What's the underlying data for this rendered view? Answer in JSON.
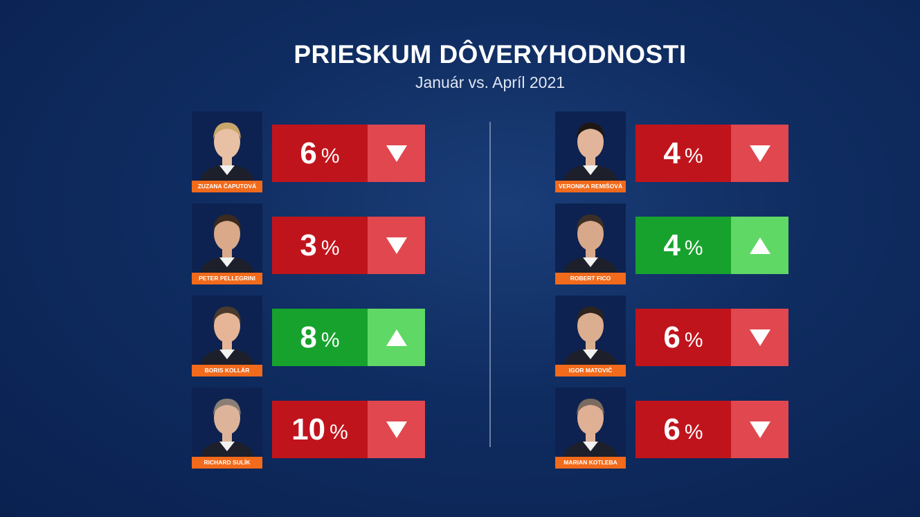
{
  "chart_data": {
    "type": "table",
    "title": "PRIESKUM DÔVERYHODNOSTI",
    "subtitle": "Január vs. Apríl 2021",
    "pct_symbol": "%",
    "colors": {
      "decrease_value": "#c0141c",
      "decrease_arrow": "#e0474f",
      "increase_value": "#17a22e",
      "increase_arrow": "#5fd865",
      "name_tag": "#f26a1b"
    },
    "entries": [
      {
        "name": "ZUZANA ČAPUTOVÁ",
        "value": 6,
        "direction": "down"
      },
      {
        "name": "PETER PELLEGRINI",
        "value": 3,
        "direction": "down"
      },
      {
        "name": "BORIS KOLLÁR",
        "value": 8,
        "direction": "up"
      },
      {
        "name": "RICHARD SULÍK",
        "value": 10,
        "direction": "down"
      },
      {
        "name": "VERONIKA REMIŠOVÁ",
        "value": 4,
        "direction": "down"
      },
      {
        "name": "ROBERT FICO",
        "value": 4,
        "direction": "up"
      },
      {
        "name": "IGOR MATOVIČ",
        "value": 6,
        "direction": "down"
      },
      {
        "name": "MARIAN KOTLEBA",
        "value": 6,
        "direction": "down"
      }
    ]
  }
}
